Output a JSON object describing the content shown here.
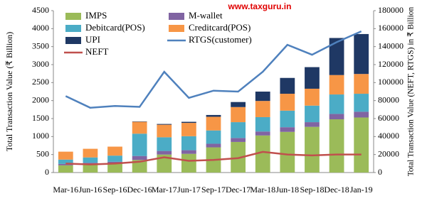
{
  "chart_data": {
    "type": "bar",
    "stacked": true,
    "watermark": "www.taxguru.in",
    "y_label": "Total Transaction Value (₹ Billion)",
    "y2_label": "Total Transaction Value (NEFT, RTGS) in ₹ Billion",
    "categories": [
      "Mar-16",
      "Jun-16",
      "Sep-16",
      "Dec-16",
      "Mar-17",
      "Jun-17",
      "Sep-17",
      "Dec-17",
      "Mar-18",
      "Jun-18",
      "Sep-18",
      "Dec-18",
      "Jan-19"
    ],
    "ylim": [
      0,
      4500
    ],
    "yticks": [
      0,
      500,
      1000,
      1500,
      2000,
      2500,
      3000,
      3500,
      4000,
      4500
    ],
    "y2lim": [
      0,
      180000
    ],
    "y2ticks": [
      0,
      20000,
      40000,
      60000,
      80000,
      100000,
      120000,
      140000,
      160000,
      180000
    ],
    "series": [
      {
        "name": "IMPS",
        "color": "#9bbb59",
        "values": [
          200,
          220,
          250,
          350,
          500,
          520,
          700,
          850,
          1030,
          1130,
          1270,
          1480,
          1530
        ]
      },
      {
        "name": "M-wallet",
        "color": "#8064a2",
        "values": [
          40,
          50,
          50,
          110,
          100,
          100,
          100,
          110,
          110,
          130,
          130,
          150,
          160
        ]
      },
      {
        "name": "Debitcard(POS)",
        "color": "#4bacc6",
        "values": [
          120,
          150,
          170,
          620,
          380,
          390,
          370,
          440,
          400,
          460,
          460,
          540,
          500
        ]
      },
      {
        "name": "Creditcard(POS)",
        "color": "#f79646",
        "values": [
          220,
          240,
          250,
          330,
          350,
          370,
          380,
          420,
          450,
          470,
          470,
          540,
          550
        ]
      },
      {
        "name": "UPI",
        "color": "#1f3864",
        "values": [
          0,
          0,
          0,
          10,
          20,
          30,
          50,
          140,
          260,
          440,
          600,
          1030,
          1110
        ]
      },
      {
        "name": "RTGS(customer)",
        "color": "#4f81bd",
        "type": "line",
        "axis": "y2",
        "values": [
          85000,
          72000,
          74000,
          73000,
          112000,
          83000,
          91000,
          90000,
          112000,
          142000,
          131000,
          145000,
          157000
        ]
      },
      {
        "name": "NEFT",
        "color": "#c0504d",
        "type": "line",
        "axis": "y2",
        "values": [
          10000,
          9000,
          10000,
          12000,
          17000,
          13000,
          14000,
          16000,
          23000,
          20000,
          19000,
          20000,
          20000
        ]
      }
    ]
  }
}
